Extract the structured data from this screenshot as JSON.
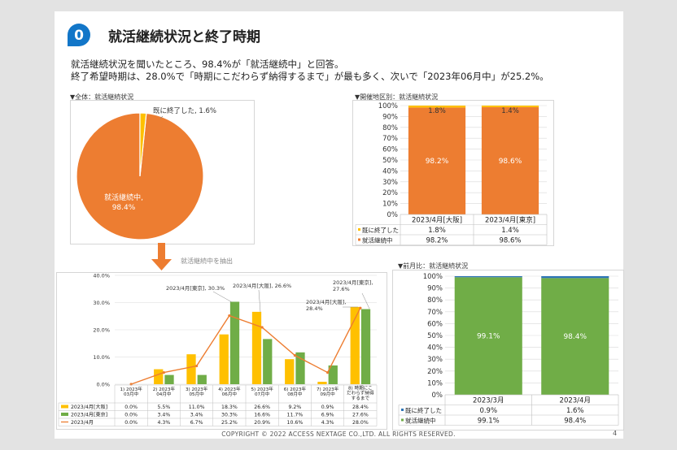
{
  "header": {
    "badge": "0",
    "title": "就活継続状況と終了時期",
    "summary_line1": "就活継続状況を聞いたところ、98.4%が「就活継続中」と回答。",
    "summary_line2": "終了希望時期は、28.0%で「時期にこだわらず納得するまで」が最も多く、次いで「2023年06月中」が25.2%。"
  },
  "colors": {
    "orange": "#ed7d31",
    "yellow": "#ffc000",
    "green": "#70ad47",
    "blue": "#2e75b6",
    "accent": "#1276c8"
  },
  "pie": {
    "label": "▼全体：就活継続状況",
    "arrow_label": "就活継続中を抽出"
  },
  "stacked_region": {
    "label": "▼開催地区別：就活継続状況"
  },
  "stacked_month": {
    "label": "▼前月比：就活継続状況"
  },
  "chart_data": [
    {
      "type": "pie",
      "slices": [
        {
          "name": "就活継続中",
          "value": 98.4,
          "label": "就活継続中,\n98.4%",
          "color": "#ed7d31"
        },
        {
          "name": "既に終了した",
          "value": 1.6,
          "label": "既に終了した, 1.6%",
          "color": "#ffc000"
        }
      ]
    },
    {
      "type": "bar",
      "stacked": true,
      "categories": [
        "2023/4月[大阪]",
        "2023/4月[東京]"
      ],
      "series": [
        {
          "name": "就活継続中",
          "values": [
            98.2,
            98.6
          ],
          "labels": [
            "98.2%",
            "98.6%"
          ],
          "color": "#ed7d31"
        },
        {
          "name": "既に終了した",
          "values": [
            1.8,
            1.4
          ],
          "labels": [
            "1.8%",
            "1.4%"
          ],
          "color": "#ffc000"
        }
      ],
      "ylim": [
        0,
        100
      ],
      "yticks": [
        "0%",
        "10%",
        "20%",
        "30%",
        "40%",
        "50%",
        "60%",
        "70%",
        "80%",
        "90%",
        "100%"
      ],
      "table": [
        {
          "name": "既に終了した",
          "cells": [
            "1.8%",
            "1.4%"
          ]
        },
        {
          "name": "就活継続中",
          "cells": [
            "98.2%",
            "98.6%"
          ]
        }
      ]
    },
    {
      "type": "bar",
      "categories": [
        "1) 2023年\n03月中",
        "2) 2023年\n04月中",
        "3) 2023年\n05月中",
        "4) 2023年\n06月中",
        "5) 2023年\n07月中",
        "6) 2023年\n08月中",
        "7) 2023年\n09月中",
        "8) 時期にこ\nだわらず納得\nするまで"
      ],
      "series": [
        {
          "name": "2023/4月[大阪]",
          "kind": "bar",
          "values": [
            0.0,
            5.5,
            11.0,
            18.3,
            26.6,
            9.2,
            0.9,
            28.4
          ],
          "cells": [
            "0.0%",
            "5.5%",
            "11.0%",
            "18.3%",
            "26.6%",
            "9.2%",
            "0.9%",
            "28.4%"
          ],
          "color": "#ffc000"
        },
        {
          "name": "2023/4月[東京]",
          "kind": "bar",
          "values": [
            0.0,
            3.4,
            3.4,
            30.3,
            16.6,
            11.7,
            6.9,
            27.6
          ],
          "cells": [
            "0.0%",
            "3.4%",
            "3.4%",
            "30.3%",
            "16.6%",
            "11.7%",
            "6.9%",
            "27.6%"
          ],
          "color": "#70ad47"
        },
        {
          "name": "2023/4月",
          "kind": "line",
          "values": [
            0.0,
            4.3,
            6.7,
            25.2,
            20.9,
            10.6,
            4.3,
            28.0
          ],
          "cells": [
            "0.0%",
            "4.3%",
            "6.7%",
            "25.2%",
            "20.9%",
            "10.6%",
            "4.3%",
            "28.0%"
          ],
          "color": "#ed7d31"
        }
      ],
      "ylim": [
        0,
        40
      ],
      "yticks": [
        "0.0%",
        "10.0%",
        "20.0%",
        "30.0%",
        "40.0%"
      ],
      "annotations": [
        {
          "text": "2023/4月[東京], 30.3%",
          "category": 3
        },
        {
          "text": "2023/4月[大阪], 26.6%",
          "category": 4
        },
        {
          "text": "2023/4月[東京],\n27.6%",
          "category": 7
        },
        {
          "text": "2023/4月[大阪],\n28.4%",
          "category": 7
        }
      ]
    },
    {
      "type": "bar",
      "stacked": true,
      "categories": [
        "2023/3月",
        "2023/4月"
      ],
      "series": [
        {
          "name": "就活継続中",
          "values": [
            99.1,
            98.4
          ],
          "labels": [
            "99.1%",
            "98.4%"
          ],
          "color": "#70ad47"
        },
        {
          "name": "既に終了した",
          "values": [
            0.9,
            1.6
          ],
          "color": "#2e75b6"
        }
      ],
      "ylim": [
        0,
        100
      ],
      "yticks": [
        "0%",
        "10%",
        "20%",
        "30%",
        "40%",
        "50%",
        "60%",
        "70%",
        "80%",
        "90%",
        "100%"
      ],
      "table": [
        {
          "name": "既に終了した",
          "cells": [
            "0.9%",
            "1.6%"
          ]
        },
        {
          "name": "就活継続中",
          "cells": [
            "99.1%",
            "98.4%"
          ]
        }
      ]
    }
  ],
  "footer": {
    "copyright": "COPYRIGHT © 2022 ACCESS NEXTAGE CO.,LTD. ALL RIGHTS RESERVED.",
    "page": "4"
  }
}
